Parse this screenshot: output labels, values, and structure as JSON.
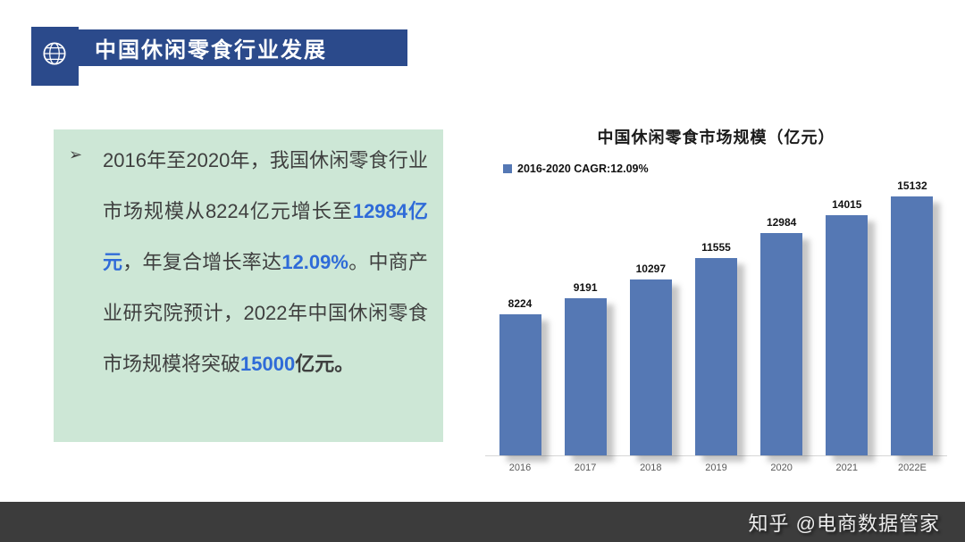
{
  "header": {
    "title": "中国休闲零食行业发展",
    "icon": "globe-icon",
    "accent_color": "#2b4a8b"
  },
  "text_panel": {
    "bullet": "➢",
    "background_color": "#cde7d6",
    "highlight_color": "#2f6bd8",
    "segments": [
      {
        "t": "2016年至2020年，我国休闲零食行业市场规模从8224亿元增长至",
        "s": "normal"
      },
      {
        "t": "12984亿元",
        "s": "highlight"
      },
      {
        "t": "，年复合增长率达",
        "s": "normal"
      },
      {
        "t": "12.09%",
        "s": "highlight"
      },
      {
        "t": "。中商产业研究院预计，2022年中国休闲零食市场规模将突破",
        "s": "normal"
      },
      {
        "t": "15000",
        "s": "highlight"
      },
      {
        "t": "亿元。",
        "s": "bold"
      }
    ]
  },
  "chart_data": {
    "type": "bar",
    "title": "中国休闲零食市场规模（亿元）",
    "legend_label": "2016-2020 CAGR:",
    "legend_value": "12.09%",
    "categories": [
      "2016",
      "2017",
      "2018",
      "2019",
      "2020",
      "2021",
      "2022E"
    ],
    "values": [
      8224,
      9191,
      10297,
      11555,
      12984,
      14015,
      15132
    ],
    "ylim": [
      0,
      15132
    ],
    "bar_color": "#5578b4",
    "grid": false,
    "legend_position": "top-left",
    "value_labels": true
  },
  "footer": {
    "watermark": "知乎 @电商数据管家"
  }
}
